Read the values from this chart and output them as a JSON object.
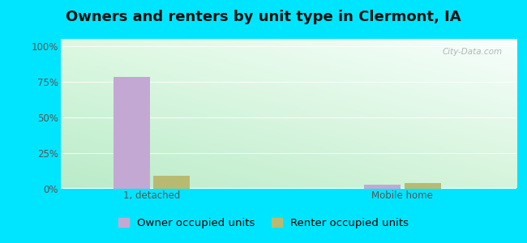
{
  "title": "Owners and renters by unit type in Clermont, IA",
  "categories": [
    "1, detached",
    "Mobile home"
  ],
  "owner_values": [
    78.0,
    2.5
  ],
  "renter_values": [
    9.0,
    3.5
  ],
  "owner_color": "#c4a8d4",
  "renter_color": "#b8ba72",
  "yticks": [
    0,
    25,
    50,
    75,
    100
  ],
  "ytick_labels": [
    "0%",
    "25%",
    "50%",
    "75%",
    "100%"
  ],
  "ylim": [
    0,
    105
  ],
  "outer_background": "#00e5ff",
  "watermark": "City-Data.com",
  "bar_width": 0.32,
  "group_positions": [
    1.0,
    3.2
  ],
  "title_fontsize": 13,
  "legend_fontsize": 9.5,
  "tick_fontsize": 8.5
}
